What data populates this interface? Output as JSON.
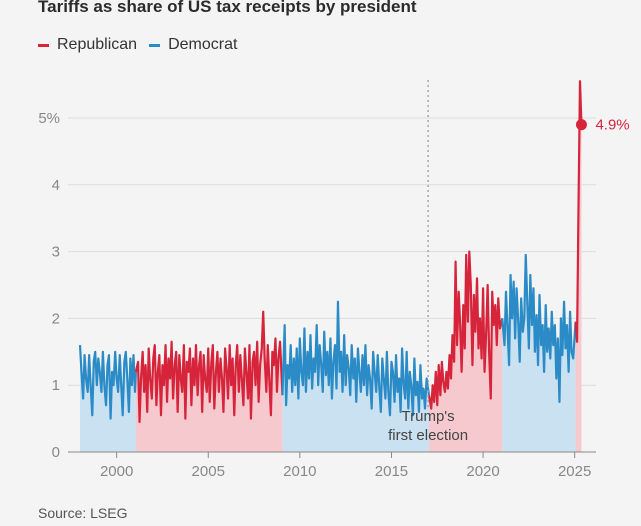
{
  "chart_data": {
    "type": "area",
    "title": "Tariffs as share of US tax receipts by president",
    "xlabel": "",
    "ylabel": "",
    "xlim": [
      1997.5,
      2025.6
    ],
    "ylim": [
      0,
      6
    ],
    "x_ticks": [
      {
        "value": 2000,
        "label": "2000"
      },
      {
        "value": 2005,
        "label": "2005"
      },
      {
        "value": 2010,
        "label": "2010"
      },
      {
        "value": 2015,
        "label": "2015"
      },
      {
        "value": 2020,
        "label": "2020"
      },
      {
        "value": 2025,
        "label": "2025"
      }
    ],
    "y_ticks": [
      {
        "value": 0,
        "label": "0"
      },
      {
        "value": 1,
        "label": "1"
      },
      {
        "value": 2,
        "label": "2"
      },
      {
        "value": 3,
        "label": "3"
      },
      {
        "value": 4,
        "label": "4"
      },
      {
        "value": 5,
        "label": "5%"
      }
    ],
    "legend": [
      {
        "name": "Republican",
        "color": "#d6243b"
      },
      {
        "name": "Democrat",
        "color": "#2b8bc6"
      }
    ],
    "colors": {
      "Republican": "#d6243b",
      "Democrat": "#2b8bc6",
      "Republican_fill": "#f6c9cf",
      "Democrat_fill": "#c9e1f0"
    },
    "terms": [
      {
        "party": "Democrat",
        "start": 1998.0,
        "end": 2001.05
      },
      {
        "party": "Republican",
        "start": 2001.05,
        "end": 2009.05
      },
      {
        "party": "Democrat",
        "start": 2009.05,
        "end": 2017.05
      },
      {
        "party": "Republican",
        "start": 2017.05,
        "end": 2021.05
      },
      {
        "party": "Democrat",
        "start": 2021.05,
        "end": 2025.05
      },
      {
        "party": "Republican",
        "start": 2025.05,
        "end": 2025.4
      }
    ],
    "series": [
      {
        "name": "Democrat",
        "segment": 1,
        "x": [
          1998.0,
          1998.08,
          1998.17,
          1998.25,
          1998.33,
          1998.42,
          1998.5,
          1998.58,
          1998.67,
          1998.75,
          1998.83,
          1998.92,
          1999.0,
          1999.08,
          1999.17,
          1999.25,
          1999.33,
          1999.42,
          1999.5,
          1999.58,
          1999.67,
          1999.75,
          1999.83,
          1999.92,
          2000.0,
          2000.08,
          2000.17,
          2000.25,
          2000.33,
          2000.42,
          2000.5,
          2000.58,
          2000.67,
          2000.75,
          2000.83,
          2000.92,
          2001.0,
          2001.05
        ],
        "values": [
          1.6,
          1.2,
          0.8,
          1.45,
          1.1,
          0.9,
          1.45,
          1.0,
          0.55,
          1.35,
          1.5,
          1.0,
          1.4,
          1.2,
          0.9,
          1.5,
          1.0,
          0.7,
          1.3,
          1.45,
          0.5,
          1.2,
          1.0,
          1.5,
          1.1,
          0.9,
          1.45,
          1.0,
          0.55,
          1.35,
          1.5,
          1.1,
          0.6,
          1.4,
          1.0,
          1.45,
          0.9,
          1.2
        ]
      },
      {
        "name": "Republican",
        "segment": 2,
        "x": [
          2001.05,
          2001.17,
          2001.25,
          2001.33,
          2001.42,
          2001.5,
          2001.58,
          2001.67,
          2001.75,
          2001.83,
          2001.92,
          2002.0,
          2002.08,
          2002.17,
          2002.25,
          2002.33,
          2002.42,
          2002.5,
          2002.58,
          2002.67,
          2002.75,
          2002.83,
          2002.92,
          2003.0,
          2003.08,
          2003.17,
          2003.25,
          2003.33,
          2003.42,
          2003.5,
          2003.58,
          2003.67,
          2003.75,
          2003.83,
          2003.92,
          2004.0,
          2004.08,
          2004.17,
          2004.25,
          2004.33,
          2004.42,
          2004.5,
          2004.58,
          2004.67,
          2004.75,
          2004.83,
          2004.92,
          2005.0,
          2005.08,
          2005.17,
          2005.25,
          2005.33,
          2005.42,
          2005.5,
          2005.58,
          2005.67,
          2005.75,
          2005.83,
          2005.92,
          2006.0,
          2006.08,
          2006.17,
          2006.25,
          2006.33,
          2006.42,
          2006.5,
          2006.58,
          2006.67,
          2006.75,
          2006.83,
          2006.92,
          2007.0,
          2007.08,
          2007.17,
          2007.25,
          2007.33,
          2007.42,
          2007.5,
          2007.58,
          2007.67,
          2007.75,
          2007.83,
          2007.92,
          2008.0,
          2008.08,
          2008.17,
          2008.25,
          2008.33,
          2008.42,
          2008.5,
          2008.58,
          2008.67,
          2008.75,
          2008.83,
          2008.92,
          2009.05
        ],
        "values": [
          1.2,
          1.35,
          0.45,
          1.1,
          1.5,
          0.9,
          1.3,
          0.6,
          1.55,
          1.1,
          0.8,
          1.4,
          1.6,
          0.7,
          1.2,
          1.45,
          0.55,
          1.3,
          1.0,
          1.6,
          0.75,
          1.4,
          1.1,
          1.65,
          0.8,
          1.3,
          1.5,
          0.6,
          1.45,
          1.1,
          0.9,
          1.6,
          0.5,
          1.35,
          1.2,
          1.55,
          0.7,
          1.4,
          1.0,
          1.6,
          0.85,
          1.3,
          1.5,
          0.6,
          1.45,
          1.1,
          0.9,
          1.55,
          0.75,
          1.35,
          1.6,
          0.65,
          1.2,
          1.5,
          0.9,
          1.4,
          1.1,
          0.6,
          1.55,
          1.25,
          0.8,
          1.6,
          1.0,
          1.4,
          0.55,
          1.3,
          1.6,
          0.9,
          1.45,
          1.1,
          0.7,
          1.55,
          1.2,
          0.8,
          1.6,
          0.5,
          1.35,
          1.5,
          1.0,
          1.65,
          0.75,
          1.3,
          1.55,
          2.1,
          1.4,
          0.9,
          1.6,
          1.1,
          0.55,
          1.5,
          1.3,
          1.7,
          0.9,
          1.4,
          1.65,
          0.85
        ]
      },
      {
        "name": "Democrat",
        "segment": 3,
        "x": [
          2009.05,
          2009.17,
          2009.25,
          2009.33,
          2009.42,
          2009.5,
          2009.58,
          2009.67,
          2009.75,
          2009.83,
          2009.92,
          2010.0,
          2010.08,
          2010.17,
          2010.25,
          2010.33,
          2010.42,
          2010.5,
          2010.58,
          2010.67,
          2010.75,
          2010.83,
          2010.92,
          2011.0,
          2011.08,
          2011.17,
          2011.25,
          2011.33,
          2011.42,
          2011.5,
          2011.58,
          2011.67,
          2011.75,
          2011.83,
          2011.92,
          2012.0,
          2012.08,
          2012.17,
          2012.25,
          2012.33,
          2012.42,
          2012.5,
          2012.58,
          2012.67,
          2012.75,
          2012.83,
          2012.92,
          2013.0,
          2013.08,
          2013.17,
          2013.25,
          2013.33,
          2013.42,
          2013.5,
          2013.58,
          2013.67,
          2013.75,
          2013.83,
          2013.92,
          2014.0,
          2014.08,
          2014.17,
          2014.25,
          2014.33,
          2014.42,
          2014.5,
          2014.58,
          2014.67,
          2014.75,
          2014.83,
          2014.92,
          2015.0,
          2015.08,
          2015.17,
          2015.25,
          2015.33,
          2015.42,
          2015.5,
          2015.58,
          2015.67,
          2015.75,
          2015.83,
          2015.92,
          2016.0,
          2016.08,
          2016.17,
          2016.25,
          2016.33,
          2016.42,
          2016.5,
          2016.58,
          2016.67,
          2016.75,
          2016.83,
          2016.92,
          2017.05
        ],
        "values": [
          0.85,
          1.9,
          0.7,
          1.3,
          1.1,
          1.6,
          0.9,
          1.4,
          1.0,
          1.55,
          0.8,
          1.7,
          1.2,
          1.0,
          1.85,
          0.9,
          1.5,
          1.1,
          1.75,
          0.95,
          1.4,
          1.2,
          1.9,
          1.0,
          1.6,
          1.3,
          0.9,
          1.8,
          1.15,
          1.5,
          1.0,
          1.7,
          0.8,
          1.35,
          1.6,
          0.95,
          2.25,
          1.2,
          1.5,
          0.9,
          1.75,
          1.0,
          1.45,
          1.25,
          0.85,
          1.6,
          1.1,
          1.4,
          0.75,
          1.55,
          1.2,
          0.9,
          1.45,
          1.0,
          1.6,
          0.85,
          1.3,
          1.1,
          0.65,
          1.5,
          1.2,
          0.9,
          1.45,
          1.0,
          0.6,
          1.4,
          1.1,
          0.8,
          1.5,
          0.9,
          0.55,
          1.35,
          1.2,
          0.75,
          1.45,
          0.9,
          1.1,
          0.6,
          1.55,
          1.0,
          0.8,
          1.5,
          0.65,
          1.2,
          1.0,
          0.55,
          1.4,
          0.85,
          1.05,
          0.6,
          1.3,
          0.8,
          0.95,
          0.65,
          1.1,
          0.85
        ]
      },
      {
        "name": "Republican",
        "segment": 4,
        "x": [
          2017.05,
          2017.17,
          2017.25,
          2017.33,
          2017.42,
          2017.5,
          2017.58,
          2017.67,
          2017.75,
          2017.83,
          2017.92,
          2018.0,
          2018.08,
          2018.17,
          2018.25,
          2018.33,
          2018.42,
          2018.5,
          2018.58,
          2018.67,
          2018.75,
          2018.83,
          2018.92,
          2019.0,
          2019.08,
          2019.17,
          2019.25,
          2019.33,
          2019.42,
          2019.5,
          2019.58,
          2019.67,
          2019.75,
          2019.83,
          2019.92,
          2020.0,
          2020.08,
          2020.17,
          2020.25,
          2020.33,
          2020.42,
          2020.5,
          2020.58,
          2020.67,
          2020.75,
          2020.83,
          2020.92,
          2021.05
        ],
        "values": [
          0.85,
          0.65,
          1.0,
          0.75,
          1.2,
          0.7,
          1.3,
          0.85,
          1.35,
          1.05,
          0.9,
          1.2,
          0.95,
          1.45,
          1.1,
          1.75,
          1.35,
          2.85,
          1.6,
          2.4,
          1.9,
          1.2,
          2.2,
          1.55,
          2.95,
          1.95,
          3.0,
          2.5,
          1.3,
          2.35,
          1.8,
          2.6,
          1.55,
          2.0,
          1.4,
          2.45,
          1.2,
          1.8,
          2.5,
          1.5,
          0.8,
          2.4,
          1.9,
          2.2,
          1.6,
          2.3,
          1.85,
          2.0
        ]
      },
      {
        "name": "Democrat",
        "segment": 5,
        "x": [
          2021.05,
          2021.17,
          2021.25,
          2021.33,
          2021.42,
          2021.5,
          2021.58,
          2021.67,
          2021.75,
          2021.83,
          2021.92,
          2022.0,
          2022.08,
          2022.17,
          2022.25,
          2022.33,
          2022.42,
          2022.5,
          2022.58,
          2022.67,
          2022.75,
          2022.83,
          2022.92,
          2023.0,
          2023.08,
          2023.17,
          2023.25,
          2023.33,
          2023.42,
          2023.5,
          2023.58,
          2023.67,
          2023.75,
          2023.83,
          2023.92,
          2024.0,
          2024.08,
          2024.17,
          2024.25,
          2024.33,
          2024.42,
          2024.5,
          2024.58,
          2024.67,
          2024.75,
          2024.83,
          2024.92,
          2025.05
        ],
        "values": [
          2.0,
          1.6,
          2.4,
          1.9,
          1.3,
          2.65,
          2.0,
          2.55,
          1.7,
          2.45,
          1.95,
          1.35,
          2.3,
          1.8,
          2.0,
          2.95,
          2.2,
          1.55,
          2.65,
          1.9,
          2.45,
          1.5,
          2.05,
          1.3,
          2.35,
          1.6,
          1.9,
          1.2,
          2.2,
          1.5,
          1.85,
          1.4,
          2.1,
          1.6,
          1.9,
          1.1,
          1.7,
          0.75,
          2.0,
          1.45,
          2.25,
          1.55,
          1.9,
          1.2,
          2.1,
          1.5,
          1.4,
          1.95
        ]
      },
      {
        "name": "Republican",
        "segment": 6,
        "x": [
          2025.05,
          2025.13,
          2025.21,
          2025.29,
          2025.37
        ],
        "values": [
          1.95,
          1.65,
          3.7,
          5.55,
          4.9
        ]
      }
    ],
    "annotations": [
      {
        "text": "Trump's",
        "x": 2017.0
      },
      {
        "text": "first election",
        "x": 2017.0
      }
    ],
    "vline": {
      "x": 2017.0
    },
    "end_label": {
      "text": "4.9%",
      "x": 2025.37,
      "value": 4.9
    }
  },
  "source": "Source: LSEG"
}
